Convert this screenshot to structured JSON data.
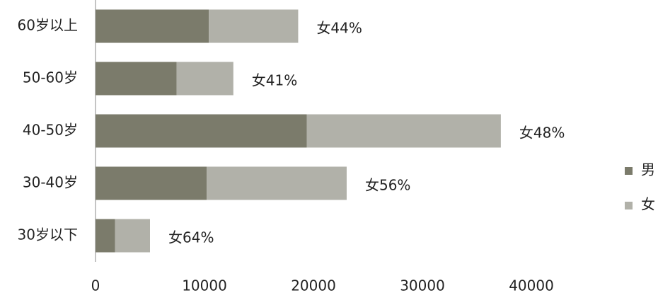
{
  "chart_data": {
    "type": "bar",
    "orientation": "horizontal",
    "stacked": true,
    "categories": [
      "60岁以上",
      "50-60岁",
      "40-50岁",
      "30-40岁",
      "30岁以下"
    ],
    "series": [
      {
        "name": "男",
        "color": "#7b7b6b",
        "values": [
          10400,
          7450,
          19400,
          10200,
          1800
        ]
      },
      {
        "name": "女",
        "color": "#b1b1a9",
        "values": [
          8200,
          5200,
          17800,
          12850,
          3200
        ]
      }
    ],
    "annotations": [
      "女44%",
      "女41%",
      "女48%",
      "女56%",
      "女64%"
    ],
    "xlim": [
      0,
      40000
    ],
    "xticks": [
      0,
      10000,
      20000,
      30000,
      40000
    ],
    "grid": false,
    "legend": "right"
  }
}
